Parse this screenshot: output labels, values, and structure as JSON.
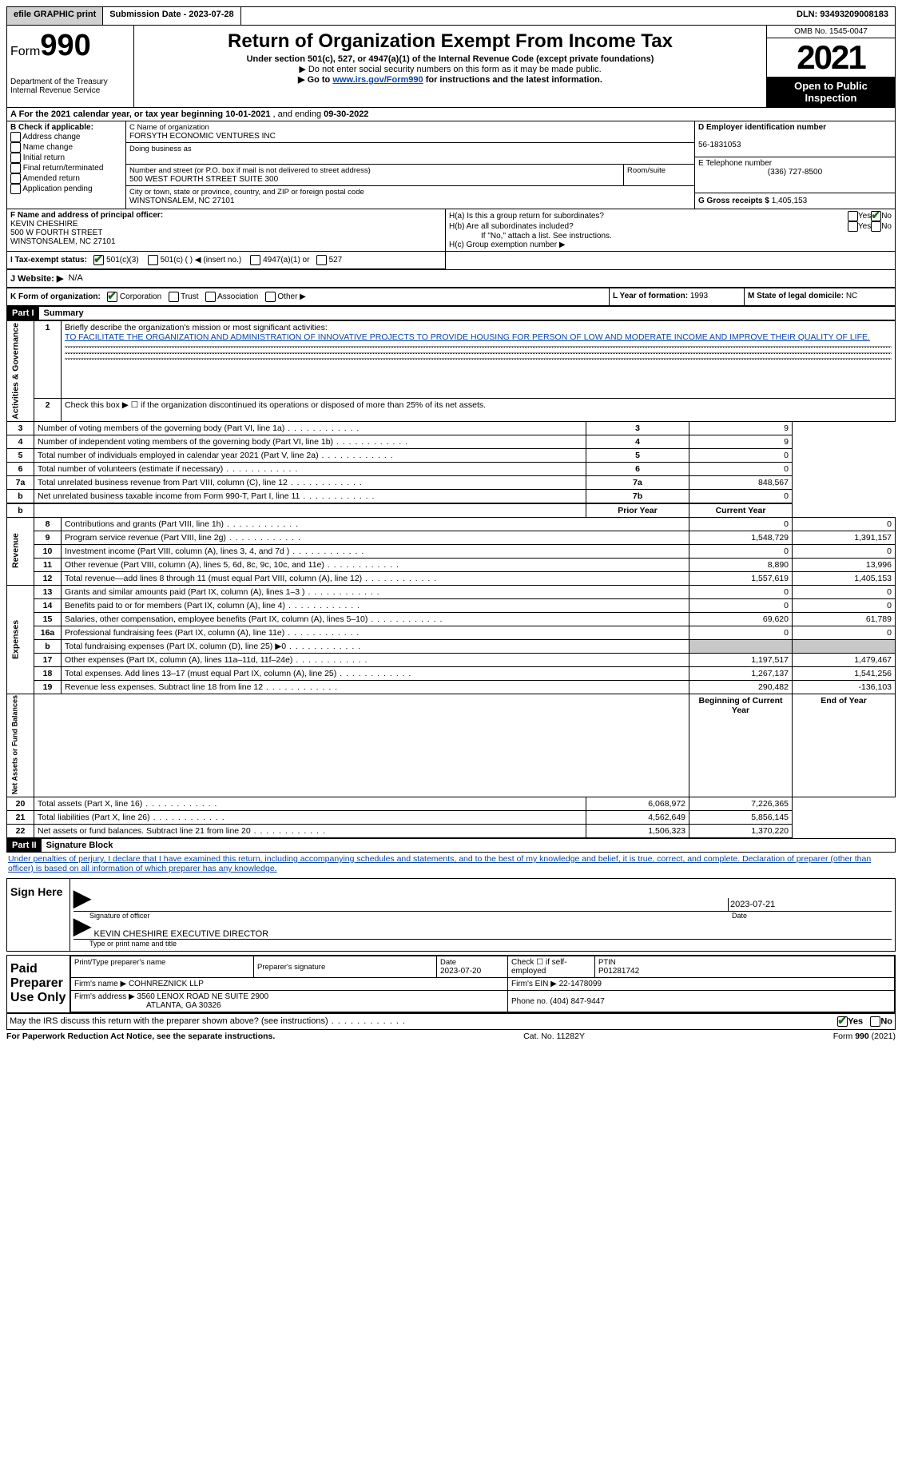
{
  "topbar": {
    "efile": "efile GRAPHIC print",
    "submission_label": "Submission Date - ",
    "submission_date": "2023-07-28",
    "dln_label": "DLN: ",
    "dln": "93493209008183"
  },
  "header": {
    "form_prefix": "Form",
    "form_number": "990",
    "title": "Return of Organization Exempt From Income Tax",
    "subtitle": "Under section 501(c), 527, or 4947(a)(1) of the Internal Revenue Code (except private foundations)",
    "note1": "▶ Do not enter social security numbers on this form as it may be made public.",
    "note2_prefix": "▶ Go to ",
    "note2_link": "www.irs.gov/Form990",
    "note2_suffix": " for instructions and the latest information.",
    "dept": "Department of the Treasury",
    "irs": "Internal Revenue Service",
    "omb": "OMB No. 1545-0047",
    "year": "2021",
    "open": "Open to Public Inspection"
  },
  "line_a": {
    "prefix": "A For the 2021 calendar year, or tax year beginning ",
    "begin": "10-01-2021",
    "mid": " , and ending ",
    "end": "09-30-2022"
  },
  "section_b": {
    "label": "B Check if applicable:",
    "opts": [
      "Address change",
      "Name change",
      "Initial return",
      "Final return/terminated",
      "Amended return",
      "Application pending"
    ]
  },
  "section_c": {
    "name_label": "C Name of organization",
    "name": "FORSYTH ECONOMIC VENTURES INC",
    "dba_label": "Doing business as",
    "street_label": "Number and street (or P.O. box if mail is not delivered to street address)",
    "room_label": "Room/suite",
    "street": "500 WEST FOURTH STREET SUITE 300",
    "city_label": "City or town, state or province, country, and ZIP or foreign postal code",
    "city": "WINSTONSALEM, NC  27101"
  },
  "section_d": {
    "label": "D Employer identification number",
    "ein": "56-1831053",
    "e_label": "E Telephone number",
    "phone": "(336) 727-8500",
    "g_label": "G Gross receipts $ ",
    "gross": "1,405,153"
  },
  "section_f": {
    "label": "F Name and address of principal officer:",
    "name": "KEVIN CHESHIRE",
    "addr1": "500 W FOURTH STREET",
    "addr2": "WINSTONSALEM, NC  27101"
  },
  "section_h": {
    "ha": "H(a)  Is this a group return for subordinates?",
    "hb": "H(b)  Are all subordinates included?",
    "hb_note": "If \"No,\" attach a list. See instructions.",
    "hc": "H(c)  Group exemption number ▶",
    "yes": "Yes",
    "no": "No"
  },
  "section_i": {
    "label": "I  Tax-exempt status:",
    "opt1": "501(c)(3)",
    "opt2": "501(c) (   ) ◀ (insert no.)",
    "opt3": "4947(a)(1) or",
    "opt4": "527"
  },
  "section_j": {
    "label": "J  Website: ▶",
    "val": "N/A"
  },
  "section_k": {
    "label": "K Form of organization:",
    "opts": [
      "Corporation",
      "Trust",
      "Association",
      "Other ▶"
    ]
  },
  "section_l": {
    "label": "L Year of formation: ",
    "val": "1993"
  },
  "section_m": {
    "label": "M State of legal domicile: ",
    "val": "NC"
  },
  "part1": {
    "header": "Part I",
    "title": "Summary"
  },
  "summary": {
    "line1_label": "Briefly describe the organization's mission or most significant activities:",
    "line1_text": "TO FACILITATE THE ORGANIZATION AND ADMINISTRATION OF INNOVATIVE PROJECTS TO PROVIDE HOUSING FOR PERSON OF LOW AND MODERATE INCOME AND IMPROVE THEIR QUALITY OF LIFE.",
    "line2": "Check this box ▶ ☐ if the organization discontinued its operations or disposed of more than 25% of its net assets.",
    "rows_top": [
      {
        "n": "3",
        "label": "Number of voting members of the governing body (Part VI, line 1a)",
        "box": "3",
        "val": "9"
      },
      {
        "n": "4",
        "label": "Number of independent voting members of the governing body (Part VI, line 1b)",
        "box": "4",
        "val": "9"
      },
      {
        "n": "5",
        "label": "Total number of individuals employed in calendar year 2021 (Part V, line 2a)",
        "box": "5",
        "val": "0"
      },
      {
        "n": "6",
        "label": "Total number of volunteers (estimate if necessary)",
        "box": "6",
        "val": "0"
      },
      {
        "n": "7a",
        "label": "Total unrelated business revenue from Part VIII, column (C), line 12",
        "box": "7a",
        "val": "848,567"
      },
      {
        "n": "b",
        "label": "Net unrelated business taxable income from Form 990-T, Part I, line 11",
        "box": "7b",
        "val": "0"
      }
    ],
    "col_prior": "Prior Year",
    "col_current": "Current Year",
    "revenue_rows": [
      {
        "n": "8",
        "label": "Contributions and grants (Part VIII, line 1h)",
        "prior": "0",
        "curr": "0"
      },
      {
        "n": "9",
        "label": "Program service revenue (Part VIII, line 2g)",
        "prior": "1,548,729",
        "curr": "1,391,157"
      },
      {
        "n": "10",
        "label": "Investment income (Part VIII, column (A), lines 3, 4, and 7d )",
        "prior": "0",
        "curr": "0"
      },
      {
        "n": "11",
        "label": "Other revenue (Part VIII, column (A), lines 5, 6d, 8c, 9c, 10c, and 11e)",
        "prior": "8,890",
        "curr": "13,996"
      },
      {
        "n": "12",
        "label": "Total revenue—add lines 8 through 11 (must equal Part VIII, column (A), line 12)",
        "prior": "1,557,619",
        "curr": "1,405,153"
      }
    ],
    "expense_rows": [
      {
        "n": "13",
        "label": "Grants and similar amounts paid (Part IX, column (A), lines 1–3 )",
        "prior": "0",
        "curr": "0"
      },
      {
        "n": "14",
        "label": "Benefits paid to or for members (Part IX, column (A), line 4)",
        "prior": "0",
        "curr": "0"
      },
      {
        "n": "15",
        "label": "Salaries, other compensation, employee benefits (Part IX, column (A), lines 5–10)",
        "prior": "69,620",
        "curr": "61,789"
      },
      {
        "n": "16a",
        "label": "Professional fundraising fees (Part IX, column (A), line 11e)",
        "prior": "0",
        "curr": "0"
      },
      {
        "n": "b",
        "label": "Total fundraising expenses (Part IX, column (D), line 25) ▶0",
        "prior": "shade",
        "curr": "shade"
      },
      {
        "n": "17",
        "label": "Other expenses (Part IX, column (A), lines 11a–11d, 11f–24e)",
        "prior": "1,197,517",
        "curr": "1,479,467"
      },
      {
        "n": "18",
        "label": "Total expenses. Add lines 13–17 (must equal Part IX, column (A), line 25)",
        "prior": "1,267,137",
        "curr": "1,541,256"
      },
      {
        "n": "19",
        "label": "Revenue less expenses. Subtract line 18 from line 12",
        "prior": "290,482",
        "curr": "-136,103"
      }
    ],
    "col_begin": "Beginning of Current Year",
    "col_end": "End of Year",
    "net_rows": [
      {
        "n": "20",
        "label": "Total assets (Part X, line 16)",
        "prior": "6,068,972",
        "curr": "7,226,365"
      },
      {
        "n": "21",
        "label": "Total liabilities (Part X, line 26)",
        "prior": "4,562,649",
        "curr": "5,856,145"
      },
      {
        "n": "22",
        "label": "Net assets or fund balances. Subtract line 21 from line 20",
        "prior": "1,506,323",
        "curr": "1,370,220"
      }
    ],
    "vlabels": [
      "Activities & Governance",
      "Revenue",
      "Expenses",
      "Net Assets or Fund Balances"
    ]
  },
  "part2": {
    "header": "Part II",
    "title": "Signature Block",
    "declaration": "Under penalties of perjury, I declare that I have examined this return, including accompanying schedules and statements, and to the best of my knowledge and belief, it is true, correct, and complete. Declaration of preparer (other than officer) is based on all information of which preparer has any knowledge."
  },
  "sign": {
    "here": "Sign Here",
    "sig_label": "Signature of officer",
    "date_label": "Date",
    "sig_date": "2023-07-21",
    "name": "KEVIN CHESHIRE EXECUTIVE DIRECTOR",
    "name_label": "Type or print name and title"
  },
  "paid": {
    "label": "Paid Preparer Use Only",
    "col_name": "Print/Type preparer's name",
    "col_sig": "Preparer's signature",
    "col_date_label": "Date",
    "col_date": "2023-07-20",
    "check_label": "Check ☐ if self-employed",
    "ptin_label": "PTIN",
    "ptin": "P01281742",
    "firm_name_label": "Firm's name    ▶ ",
    "firm_name": "COHNREZNICK LLP",
    "firm_ein_label": "Firm's EIN ▶ ",
    "firm_ein": "22-1478099",
    "firm_addr_label": "Firm's address ▶ ",
    "firm_addr1": "3560 LENOX ROAD NE SUITE 2900",
    "firm_addr2": "ATLANTA, GA  30326",
    "phone_label": "Phone no. ",
    "phone": "(404) 847-9447"
  },
  "discuss": {
    "label": "May the IRS discuss this return with the preparer shown above? (see instructions)",
    "yes": "Yes",
    "no": "No"
  },
  "footer": {
    "left": "For Paperwork Reduction Act Notice, see the separate instructions.",
    "mid": "Cat. No. 11282Y",
    "right": "Form 990 (2021)"
  }
}
